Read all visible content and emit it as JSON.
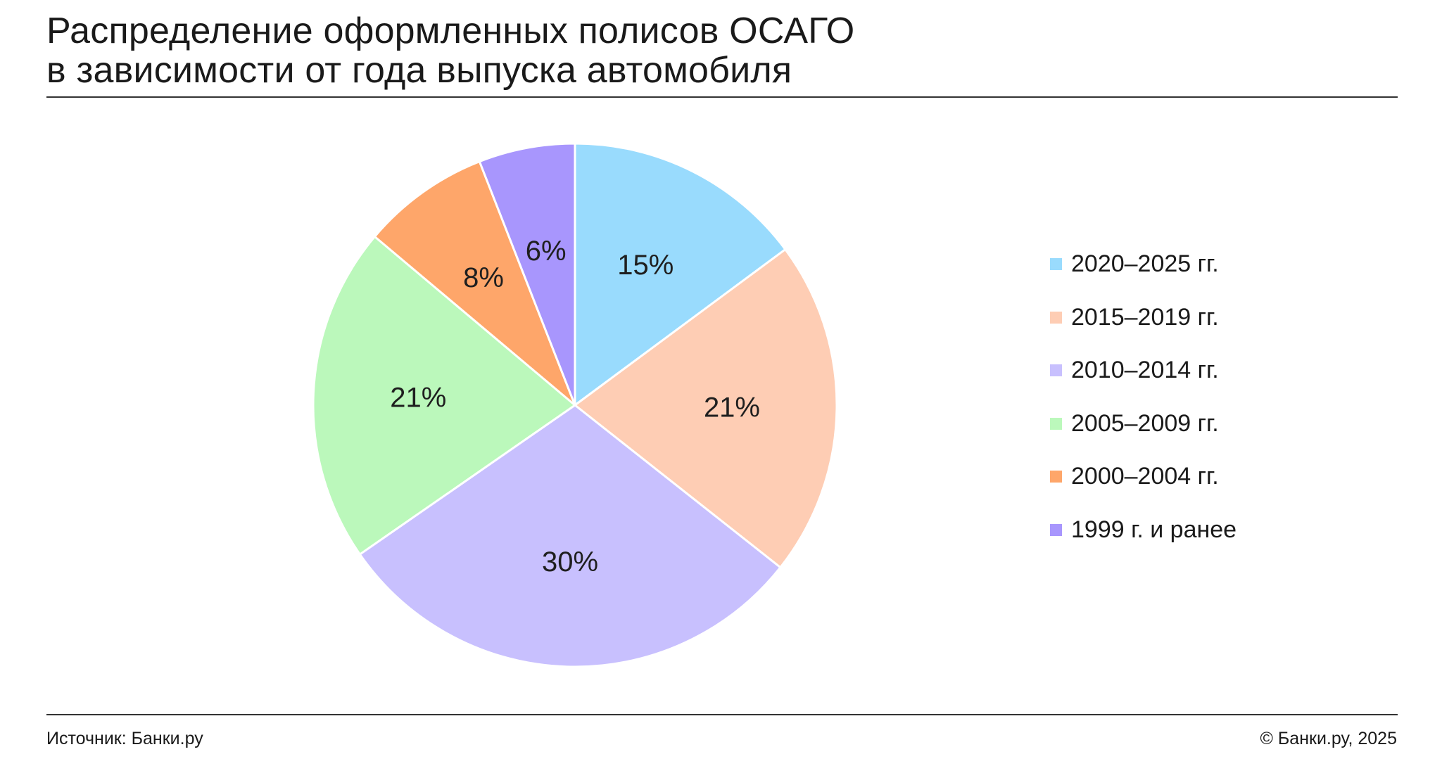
{
  "title_lines": [
    "Распределение оформленных полисов ОСАГО",
    "в зависимости от года выпуска автомобиля"
  ],
  "footer": {
    "source": "Источник: Банки.ру",
    "copyright": "© Банки.ру, 2025"
  },
  "chart_data": {
    "type": "pie",
    "title": "Распределение оформленных полисов ОСАГО в зависимости от года выпуска автомобиля",
    "legend_position": "right",
    "start_angle": "12 o'clock",
    "direction": "clockwise",
    "slices": [
      {
        "label": "2020–2025 гг.",
        "value": 15,
        "value_label": "15%",
        "color": "#99dbfd"
      },
      {
        "label": "2015–2019 гг.",
        "value": 21,
        "value_label": "21%",
        "color": "#fecdb4"
      },
      {
        "label": "2010–2014 гг.",
        "value": 30,
        "value_label": "30%",
        "color": "#c8c0fe"
      },
      {
        "label": "2005–2009 гг.",
        "value": 21,
        "value_label": "21%",
        "color": "#bbf8bb"
      },
      {
        "label": "2000–2004 гг.",
        "value": 8,
        "value_label": "8%",
        "color": "#fea66a"
      },
      {
        "label": "1999 г. и ранее",
        "value": 6,
        "value_label": "6%",
        "color": "#a896fd"
      }
    ]
  }
}
